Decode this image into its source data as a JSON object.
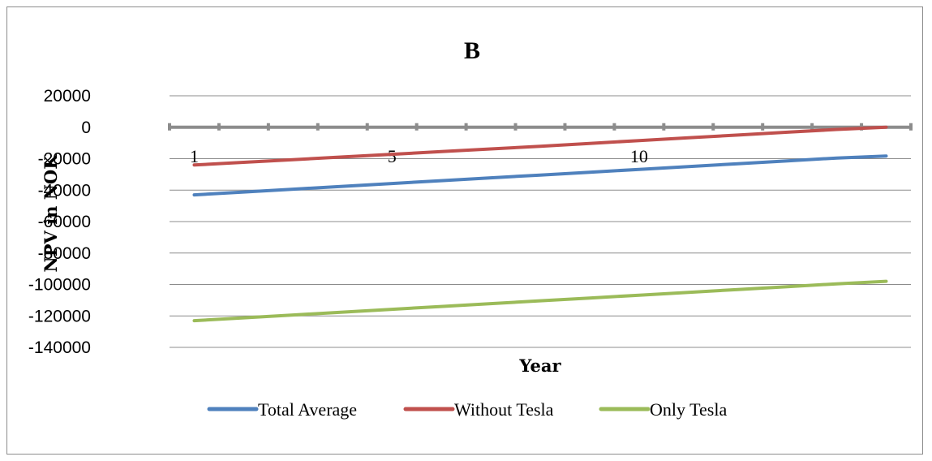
{
  "chart_data": {
    "type": "line",
    "title": "B",
    "xlabel": "Year",
    "ylabel": "NPV in NOK",
    "ylim": [
      -140000,
      20000
    ],
    "yticks": [
      20000,
      0,
      -20000,
      -40000,
      -60000,
      -80000,
      -100000,
      -120000,
      -140000
    ],
    "x": [
      1,
      2,
      3,
      4,
      5,
      6,
      7,
      8,
      9,
      10,
      11,
      12,
      13,
      14,
      15
    ],
    "x_tick_labels": [
      "1",
      "5",
      "10"
    ],
    "x_tick_label_values": [
      1,
      5,
      10
    ],
    "grid": true,
    "legend": "bottom",
    "series": [
      {
        "name": "Total Average",
        "color": "#4f81bd",
        "values": [
          -43000,
          -41200,
          -39400,
          -37600,
          -35800,
          -34000,
          -32200,
          -30400,
          -28600,
          -26800,
          -25000,
          -23200,
          -21400,
          -19600,
          -18300
        ]
      },
      {
        "name": "Without Tesla",
        "color": "#c0504d",
        "values": [
          -24000,
          -22300,
          -20600,
          -18900,
          -17200,
          -15500,
          -13800,
          -12100,
          -10300,
          -8500,
          -6700,
          -5000,
          -3200,
          -1400,
          0
        ]
      },
      {
        "name": "Only Tesla",
        "color": "#9bbb59",
        "values": [
          -123000,
          -121200,
          -119400,
          -117600,
          -115800,
          -114000,
          -112200,
          -110400,
          -108600,
          -106800,
          -105000,
          -103200,
          -101400,
          -99600,
          -98000
        ]
      }
    ]
  }
}
